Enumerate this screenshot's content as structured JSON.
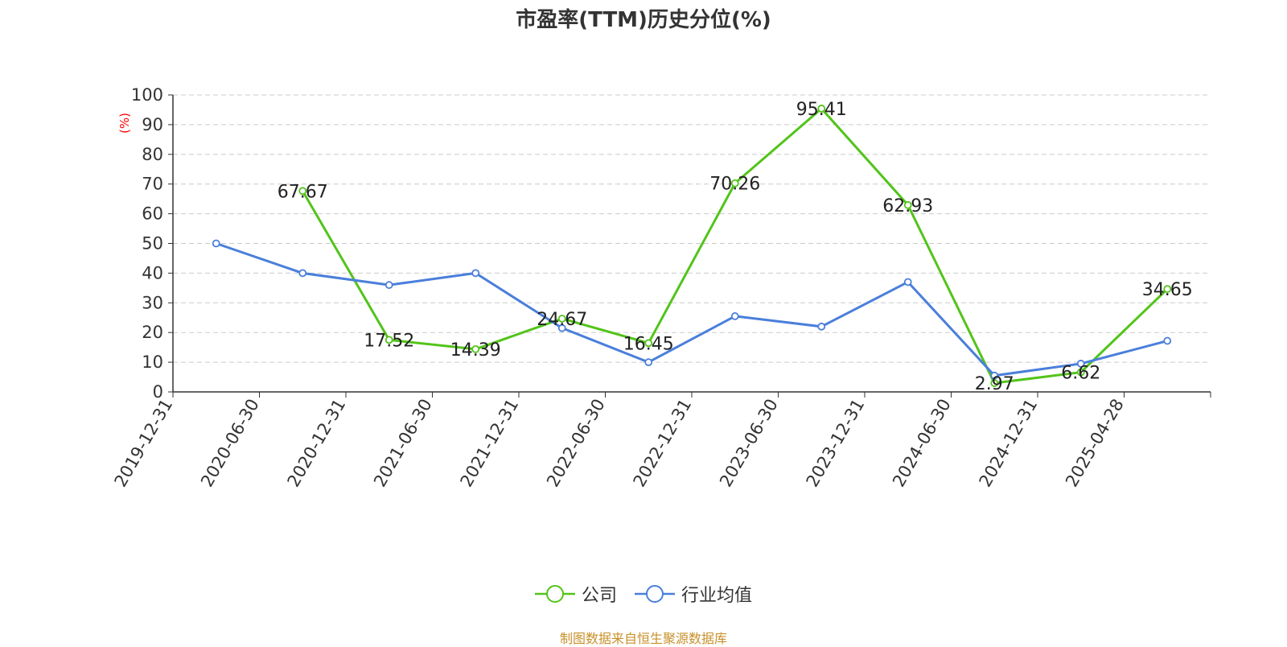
{
  "chart_data": {
    "type": "line",
    "title": "市盈率(TTM)历史分位(%)",
    "ylabel": "(%)",
    "xlabel": "",
    "ylim": [
      0,
      100
    ],
    "yticks": [
      0,
      10,
      20,
      30,
      40,
      50,
      60,
      70,
      80,
      90,
      100
    ],
    "grid": true,
    "legend_position": "bottom",
    "categories": [
      "2019-12-31",
      "2020-06-30",
      "2020-12-31",
      "2021-06-30",
      "2021-12-31",
      "2022-06-30",
      "2022-12-31",
      "2023-06-30",
      "2023-12-31",
      "2024-06-30",
      "2024-12-31",
      "2025-04-28"
    ],
    "series": [
      {
        "name": "公司",
        "color": "#52c41a",
        "values": [
          null,
          67.67,
          17.52,
          14.39,
          24.67,
          16.45,
          70.26,
          95.41,
          62.93,
          2.97,
          6.62,
          34.65
        ],
        "labels": [
          null,
          "67.67",
          "17.52",
          "14.39",
          "24.67",
          "16.45",
          "70.26",
          "95.41",
          "62.93",
          "2.97",
          "6.62",
          "34.65"
        ]
      },
      {
        "name": "行业均值",
        "color": "#4a7fdb",
        "values": [
          50,
          40,
          36,
          40,
          21.5,
          10,
          25.5,
          22,
          37,
          5.5,
          9.5,
          17.2
        ]
      }
    ]
  },
  "source_note": "制图数据来自恒生聚源数据库"
}
